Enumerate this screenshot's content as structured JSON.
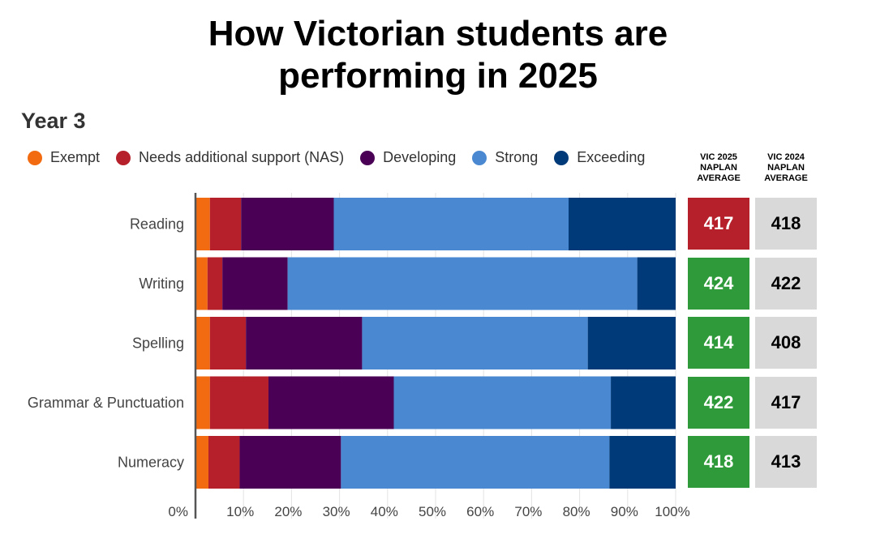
{
  "title_lines": [
    "How Victorian students are",
    "performing in 2025"
  ],
  "subtitle": "Year 3",
  "colors": {
    "exempt": "#f26b10",
    "nas": "#b5202a",
    "developing": "#4a0055",
    "strong": "#4a89d1",
    "exceeding": "#003a78",
    "avg_red": "#b5202a",
    "avg_green": "#2e9a3a",
    "avg_grey": "#d9d9d9"
  },
  "columns": {
    "vic2025": [
      "VIC 2025",
      "NAPLAN",
      "AVERAGE"
    ],
    "vic2024": [
      "VIC 2024",
      "NAPLAN",
      "AVERAGE"
    ]
  },
  "chart_data": {
    "type": "bar",
    "orientation": "horizontal",
    "stacked": true,
    "categories": [
      "Reading",
      "Writing",
      "Spelling",
      "Grammar & Punctuation",
      "Numeracy"
    ],
    "series": [
      {
        "name": "Exempt",
        "color": "#f26b10",
        "values": [
          3,
          2.5,
          3,
          3,
          2.7
        ]
      },
      {
        "name": "Needs additional support (NAS)",
        "color": "#b5202a",
        "values": [
          6.5,
          3.1,
          7.5,
          12.2,
          6.5
        ]
      },
      {
        "name": "Developing",
        "color": "#4a0055",
        "values": [
          19.3,
          13.6,
          24.2,
          26.1,
          21.1
        ]
      },
      {
        "name": "Strong",
        "color": "#4a89d1",
        "values": [
          48.9,
          72.8,
          47,
          45.2,
          55.9
        ]
      },
      {
        "name": "Exceeding",
        "color": "#003a78",
        "values": [
          22.3,
          8,
          18.3,
          13.5,
          13.8
        ]
      }
    ],
    "xticks": [
      "0%",
      "10%",
      "20%",
      "30%",
      "40%",
      "50%",
      "60%",
      "70%",
      "80%",
      "90%",
      "100%"
    ],
    "xlim": [
      0,
      100
    ],
    "grid": true,
    "legend": "top",
    "vic2025_average": [
      417,
      424,
      414,
      422,
      418
    ],
    "vic2025_status": [
      "below",
      "above",
      "above",
      "above",
      "above"
    ],
    "vic2024_average": [
      418,
      422,
      408,
      417,
      413
    ]
  }
}
